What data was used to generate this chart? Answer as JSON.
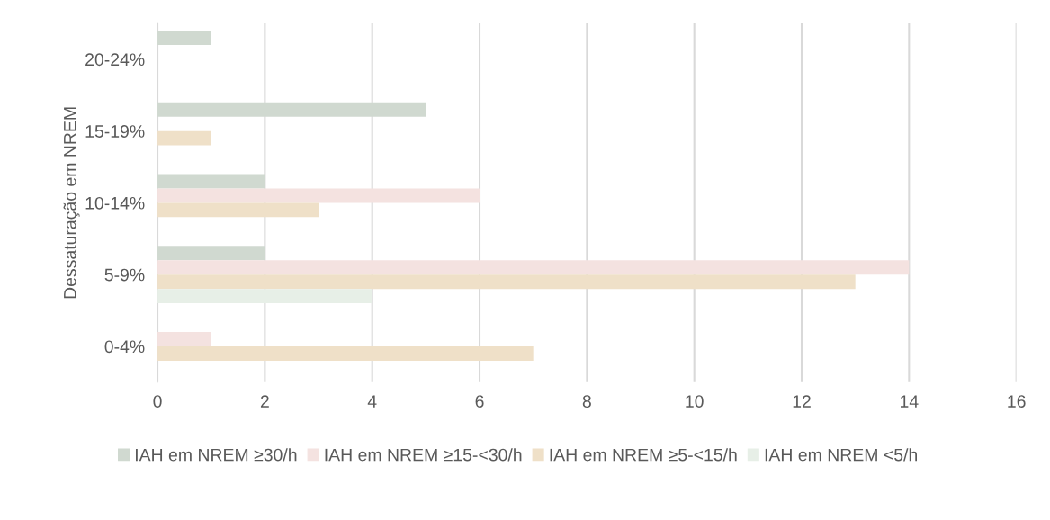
{
  "chart_data": {
    "type": "bar",
    "orientation": "horizontal",
    "ylabel": "Dessaturação em NREM",
    "categories": [
      "20-24%",
      "15-19%",
      "10-14%",
      "5-9%",
      "0-4%"
    ],
    "series": [
      {
        "name": "IAH em NREM ≥30/h",
        "color": "#d0d9d0",
        "values": [
          1,
          5,
          2,
          2,
          0
        ]
      },
      {
        "name": "IAH em NREM ≥15-<30/h",
        "color": "#f4e2e0",
        "values": [
          0,
          0,
          6,
          14,
          1
        ]
      },
      {
        "name": "IAH em NREM ≥5-<15/h",
        "color": "#efe0c8",
        "values": [
          0,
          1,
          3,
          13,
          7
        ]
      },
      {
        "name": "IAH em NREM <5/h",
        "color": "#e7efe7",
        "values": [
          0,
          0,
          0,
          4,
          0
        ]
      }
    ],
    "xlim": [
      0,
      16
    ],
    "xticks": [
      0,
      2,
      4,
      6,
      8,
      10,
      12,
      14,
      16
    ],
    "grid": "x",
    "legend": "bottom"
  }
}
